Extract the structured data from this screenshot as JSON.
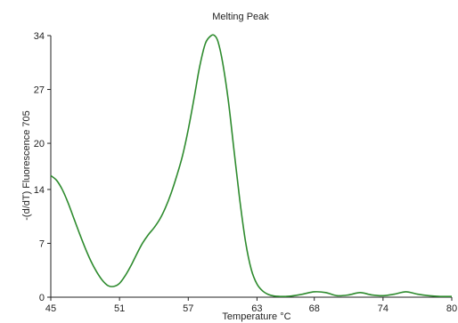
{
  "chart_data": {
    "type": "line",
    "title": "Melting Peak",
    "xlabel": "Temperature °C",
    "ylabel": "-(d/dT) Fluorescence 705",
    "xlim": [
      45,
      80
    ],
    "ylim": [
      0,
      34
    ],
    "x_ticks": [
      45,
      51,
      57,
      63,
      68,
      74,
      80
    ],
    "y_ticks": [
      0,
      7,
      14,
      20,
      27,
      34
    ],
    "grid": false,
    "legend": "none",
    "series": [
      {
        "color": "#2e8b2e",
        "x": [
          45,
          45.5,
          46,
          46.5,
          47,
          47.5,
          48,
          48.5,
          49,
          49.5,
          50,
          50.5,
          51,
          51.5,
          52,
          52.5,
          53,
          53.5,
          54,
          54.5,
          55,
          55.5,
          56,
          56.5,
          57,
          57.5,
          58,
          58.5,
          59,
          59.3,
          59.6,
          60,
          60.5,
          61,
          61.5,
          62,
          62.5,
          63,
          63.5,
          64,
          64.5,
          65,
          65.5,
          66,
          67,
          68,
          69,
          70,
          71,
          72,
          73,
          74,
          75,
          76,
          77,
          78,
          79,
          80
        ],
        "y": [
          15.8,
          15.2,
          14.0,
          12.3,
          10.3,
          8.3,
          6.4,
          4.7,
          3.3,
          2.2,
          1.5,
          1.4,
          1.8,
          2.8,
          4.1,
          5.6,
          7.0,
          8.1,
          9.0,
          10.1,
          11.6,
          13.5,
          15.8,
          18.4,
          21.8,
          25.8,
          30.0,
          33.0,
          34.0,
          34.0,
          33.2,
          30.5,
          25.5,
          19.0,
          12.6,
          7.2,
          3.6,
          1.7,
          0.8,
          0.35,
          0.15,
          0.1,
          0.1,
          0.15,
          0.4,
          0.7,
          0.6,
          0.2,
          0.3,
          0.6,
          0.3,
          0.2,
          0.4,
          0.7,
          0.4,
          0.2,
          0.1,
          0.1
        ]
      }
    ]
  }
}
